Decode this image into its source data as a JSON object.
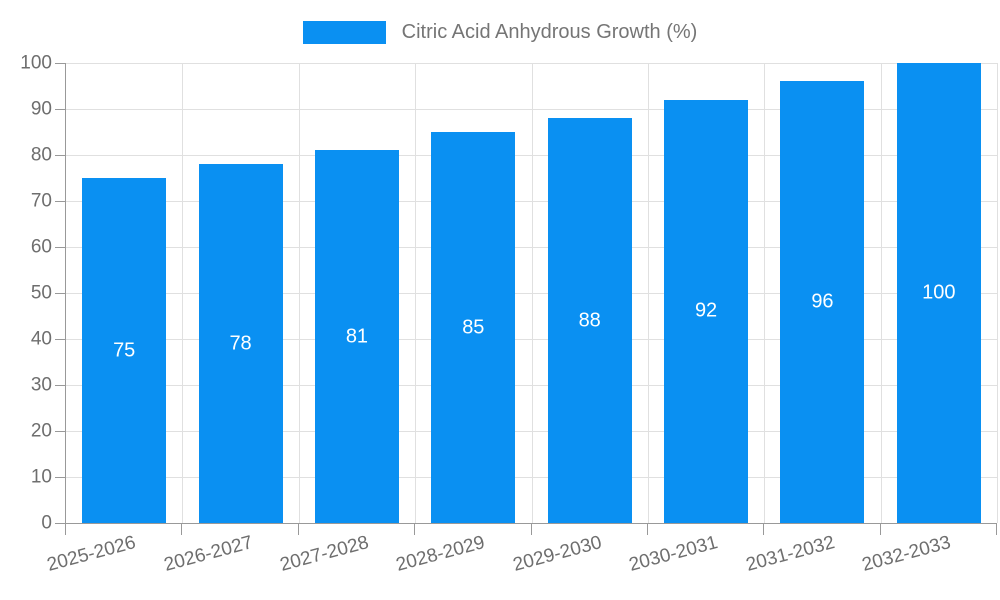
{
  "legend": {
    "label": "Citric Acid Anhydrous Growth (%)"
  },
  "chart_data": {
    "type": "bar",
    "title": "Citric Acid Anhydrous Growth (%)",
    "series_name": "Citric Acid Anhydrous Growth (%)",
    "categories": [
      "2025-2026",
      "2026-2027",
      "2027-2028",
      "2028-2029",
      "2029-2030",
      "2030-2031",
      "2031-2032",
      "2032-2033"
    ],
    "values": [
      75,
      78,
      81,
      85,
      88,
      92,
      96,
      100
    ],
    "xlabel": "",
    "ylabel": "",
    "ylim": [
      0,
      100
    ],
    "ytick_interval": 10,
    "ytick_labels": [
      "0",
      "10",
      "20",
      "30",
      "40",
      "50",
      "60",
      "70",
      "80",
      "90",
      "100"
    ],
    "grid": true,
    "legend_position": "top-center",
    "value_labels": "inside-center",
    "colors": {
      "bar": "#0a90f2",
      "value_label": "#ffffff",
      "axis_line": "#999999",
      "grid_line": "#e0e0e0",
      "tick_label": "#6e6e6e",
      "legend_text": "#757575",
      "background": "#ffffff"
    }
  }
}
